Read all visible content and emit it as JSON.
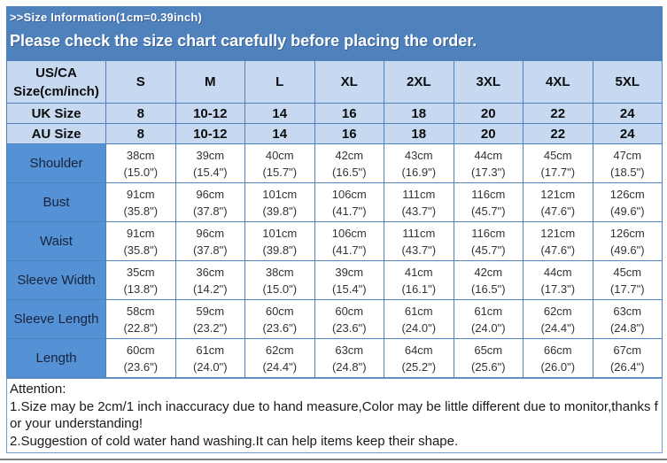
{
  "banner": {
    "title": ">>Size Information(1cm=0.39inch)",
    "subtitle": "Please check the size chart carefully before placing the order."
  },
  "colors": {
    "banner_blue": "#4f81bd",
    "header_cell_blue": "#c6d9f0",
    "label_cell_blue": "#5592d5",
    "table_border_blue": "#4f81bd",
    "attention_border_blue": "#6f9bd1",
    "bottom_line_grey": "#7f7f7f"
  },
  "size_table": {
    "corner_label": "US/CA Size(cm/inch)",
    "size_columns": [
      "S",
      "M",
      "L",
      "XL",
      "2XL",
      "3XL",
      "4XL",
      "5XL"
    ],
    "conversion_rows": [
      {
        "label": "UK Size",
        "values": [
          "8",
          "10-12",
          "14",
          "16",
          "18",
          "20",
          "22",
          "24"
        ]
      },
      {
        "label": "AU Size",
        "values": [
          "8",
          "10-12",
          "14",
          "16",
          "18",
          "20",
          "22",
          "24"
        ]
      }
    ],
    "measurement_rows": [
      {
        "label": "Shoulder",
        "cells": [
          [
            "38cm",
            "(15.0\")"
          ],
          [
            "39cm",
            "(15.4\")"
          ],
          [
            "40cm",
            "(15.7\")"
          ],
          [
            "42cm",
            "(16.5\")"
          ],
          [
            "43cm",
            "(16.9\")"
          ],
          [
            "44cm",
            "(17.3\")"
          ],
          [
            "45cm",
            "(17.7\")"
          ],
          [
            "47cm",
            "(18.5\")"
          ]
        ]
      },
      {
        "label": "Bust",
        "cells": [
          [
            "91cm",
            "(35.8\")"
          ],
          [
            "96cm",
            "(37.8\")"
          ],
          [
            "101cm",
            "(39.8\")"
          ],
          [
            "106cm",
            "(41.7\")"
          ],
          [
            "111cm",
            "(43.7\")"
          ],
          [
            "116cm",
            "(45.7\")"
          ],
          [
            "121cm",
            "(47.6\")"
          ],
          [
            "126cm",
            "(49.6\")"
          ]
        ]
      },
      {
        "label": "Waist",
        "cells": [
          [
            "91cm",
            "(35.8\")"
          ],
          [
            "96cm",
            "(37.8\")"
          ],
          [
            "101cm",
            "(39.8\")"
          ],
          [
            "106cm",
            "(41.7\")"
          ],
          [
            "111cm",
            "(43.7\")"
          ],
          [
            "116cm",
            "(45.7\")"
          ],
          [
            "121cm",
            "(47.6\")"
          ],
          [
            "126cm",
            "(49.6\")"
          ]
        ]
      },
      {
        "label": "Sleeve Width",
        "cells": [
          [
            "35cm",
            "(13.8\")"
          ],
          [
            "36cm",
            "(14.2\")"
          ],
          [
            "38cm",
            "(15.0\")"
          ],
          [
            "39cm",
            "(15.4\")"
          ],
          [
            "41cm",
            "(16.1\")"
          ],
          [
            "42cm",
            "(16.5\")"
          ],
          [
            "44cm",
            "(17.3\")"
          ],
          [
            "45cm",
            "(17.7\")"
          ]
        ]
      },
      {
        "label": "Sleeve Length",
        "cells": [
          [
            "58cm",
            "(22.8\")"
          ],
          [
            "59cm",
            "(23.2\")"
          ],
          [
            "60cm",
            "(23.6\")"
          ],
          [
            "60cm",
            "(23.6\")"
          ],
          [
            "61cm",
            "(24.0\")"
          ],
          [
            "61cm",
            "(24.0\")"
          ],
          [
            "62cm",
            "(24.4\")"
          ],
          [
            "63cm",
            "(24.8\")"
          ]
        ]
      },
      {
        "label": "Length",
        "cells": [
          [
            "60cm",
            "(23.6\")"
          ],
          [
            "61cm",
            "(24.0\")"
          ],
          [
            "62cm",
            "(24.4\")"
          ],
          [
            "63cm",
            "(24.8\")"
          ],
          [
            "64cm",
            "(25.2\")"
          ],
          [
            "65cm",
            "(25.6\")"
          ],
          [
            "66cm",
            "(26.0\")"
          ],
          [
            "67cm",
            "(26.4\")"
          ]
        ]
      }
    ]
  },
  "attention": {
    "title": "Attention:",
    "items": [
      "1.Size may be 2cm/1 inch inaccuracy due to hand measure,Color may be little different due to monitor,thanks for your understanding!",
      "2.Suggestion of cold water hand washing.It can help items keep their shape."
    ]
  }
}
